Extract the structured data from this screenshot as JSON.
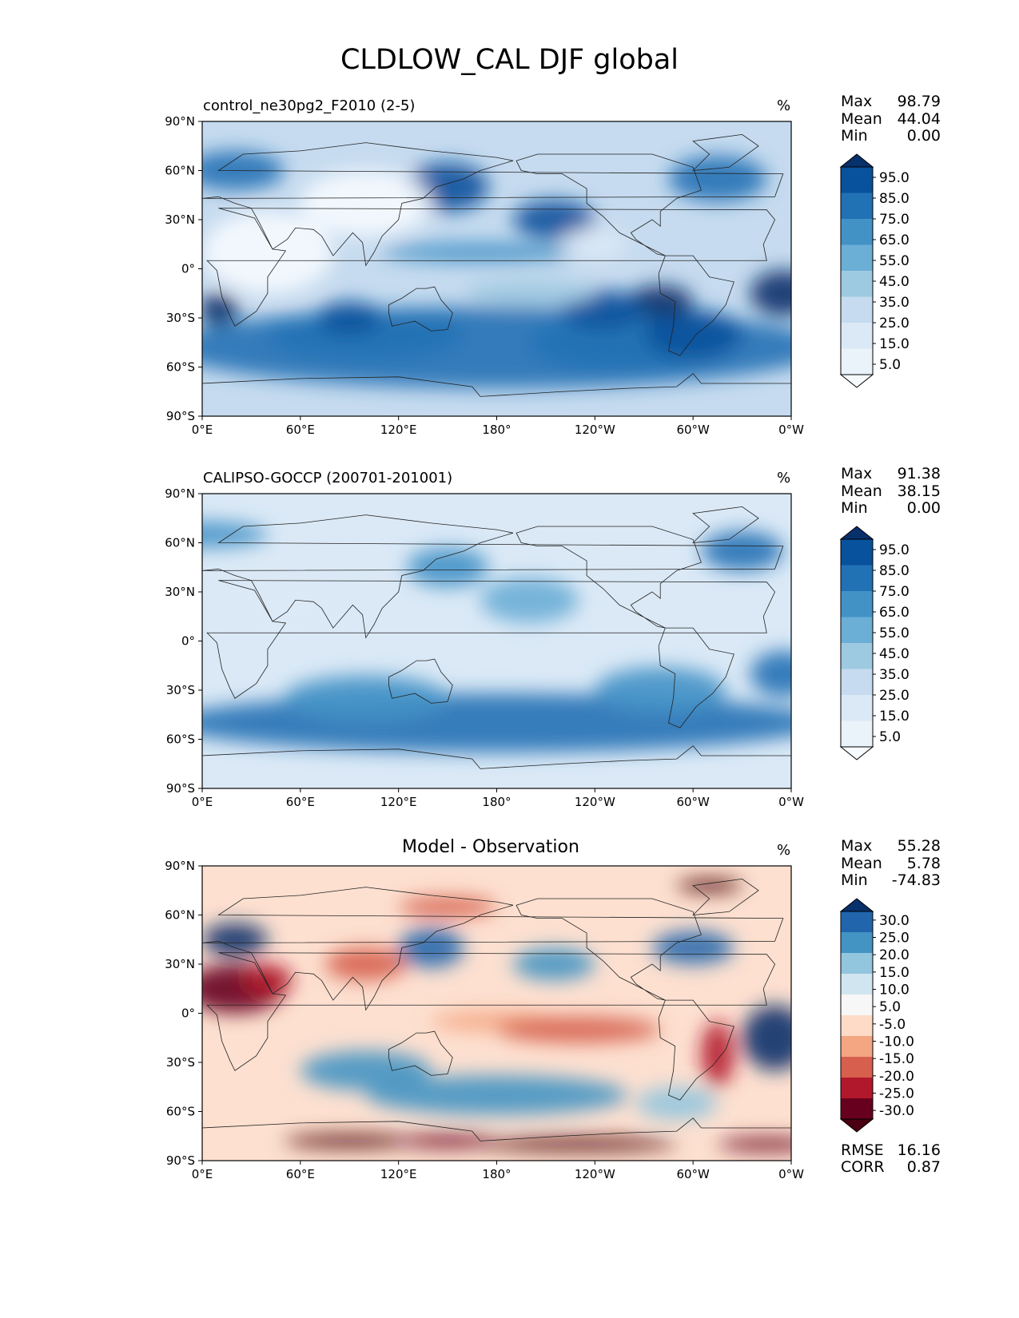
{
  "title": "CLDLOW_CAL DJF global",
  "map_axes": {
    "lat_ticks": [
      "90°N",
      "60°N",
      "30°N",
      "0°",
      "30°S",
      "60°S",
      "90°S"
    ],
    "lon_ticks": [
      "0°E",
      "60°E",
      "120°E",
      "180°",
      "120°W",
      "60°W",
      "0°W"
    ]
  },
  "panels": [
    {
      "title": "control_ne30pg2_F2010 (2-5)",
      "units": "%",
      "stats": {
        "max_label": "Max",
        "max": "98.79",
        "mean_label": "Mean",
        "mean": "44.04",
        "min_label": "Min",
        "min": "0.00"
      },
      "colorbar": {
        "labels": [
          "95.0",
          "85.0",
          "75.0",
          "65.0",
          "55.0",
          "45.0",
          "35.0",
          "25.0",
          "15.0",
          "5.0"
        ],
        "colors": [
          "#08306b",
          "#08519c",
          "#2171b5",
          "#4292c6",
          "#6baed6",
          "#9ecae1",
          "#c6dbef",
          "#dbe9f6",
          "#eaf2fa",
          "#f7fbff"
        ]
      }
    },
    {
      "title": "CALIPSO-GOCCP (200701-201001)",
      "units": "%",
      "stats": {
        "max_label": "Max",
        "max": "91.38",
        "mean_label": "Mean",
        "mean": "38.15",
        "min_label": "Min",
        "min": "0.00"
      },
      "colorbar": {
        "labels": [
          "95.0",
          "85.0",
          "75.0",
          "65.0",
          "55.0",
          "45.0",
          "35.0",
          "25.0",
          "15.0",
          "5.0"
        ],
        "colors": [
          "#08306b",
          "#08519c",
          "#2171b5",
          "#4292c6",
          "#6baed6",
          "#9ecae1",
          "#c6dbef",
          "#dbe9f6",
          "#eaf2fa",
          "#f7fbff"
        ]
      }
    },
    {
      "title": "Model - Observation",
      "units": "%",
      "stats": {
        "max_label": "Max",
        "max": "55.28",
        "mean_label": "Mean",
        "mean": "5.78",
        "min_label": "Min",
        "min": "-74.83"
      },
      "colorbar": {
        "labels": [
          "30.0",
          "25.0",
          "20.0",
          "15.0",
          "10.0",
          "5.0",
          "-5.0",
          "-10.0",
          "-15.0",
          "-20.0",
          "-25.0",
          "-30.0"
        ],
        "colors": [
          "#08306b",
          "#2166ac",
          "#4393c3",
          "#92c5de",
          "#d1e5f0",
          "#f7f7f7",
          "#fddbc7",
          "#f4a582",
          "#d6604d",
          "#b2182b",
          "#67001f",
          "#4a0010"
        ]
      },
      "footer": {
        "rmse_label": "RMSE",
        "rmse": "16.16",
        "corr_label": "CORR",
        "corr": "0.87"
      }
    }
  ]
}
